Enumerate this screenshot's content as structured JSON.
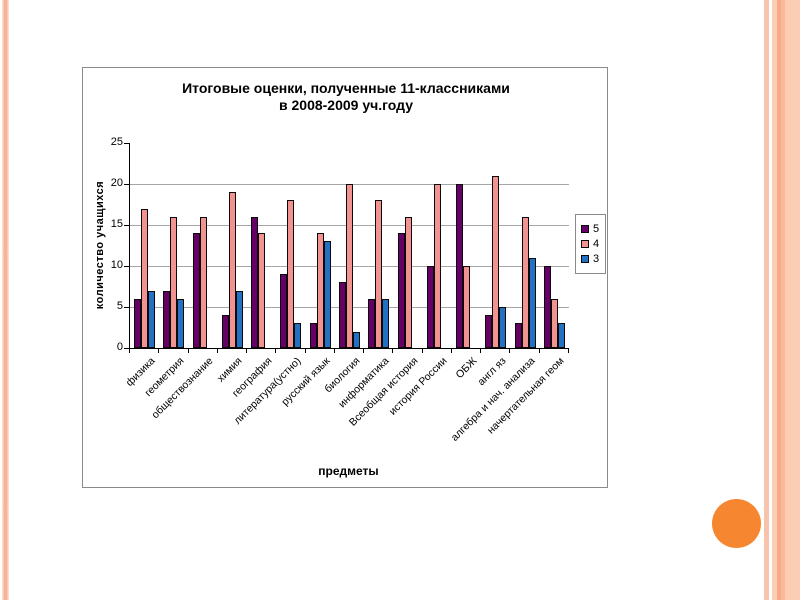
{
  "slide": {
    "decor": {
      "left_stripe_color": "#f5b196",
      "right_line_color": "#f8c3ab",
      "right_panel_color": "#fccdb5",
      "circle_color": "#f6862f"
    }
  },
  "chart_data": {
    "type": "bar",
    "title": "Итоговые оценки, полученные 11-классниками в 2008-2009 уч.году",
    "title_line1": "Итоговые оценки, полученные 11-классниками",
    "title_line2": "в 2008-2009 уч.году",
    "xlabel": "предметы",
    "ylabel": "количество учащихся",
    "ylim": [
      0,
      25
    ],
    "yticks": [
      0,
      5,
      10,
      15,
      20,
      25
    ],
    "grid": true,
    "legend_position": "right",
    "categories": [
      "физика",
      "геометрия",
      "обществознание",
      "химия",
      "география",
      "литература(устно)",
      "русский язык",
      "биология",
      "информатика",
      "Всеобщая история",
      "история России",
      "ОБЖ",
      "англ яз",
      "алгебра и нач. анализа",
      "начертательная геом"
    ],
    "series": [
      {
        "name": "5",
        "color": "#660066",
        "values": [
          6,
          7,
          14,
          4,
          16,
          9,
          3,
          8,
          6,
          14,
          10,
          20,
          4,
          3,
          10
        ]
      },
      {
        "name": "4",
        "color": "#f29291",
        "values": [
          17,
          16,
          16,
          19,
          14,
          18,
          14,
          20,
          18,
          16,
          20,
          10,
          21,
          16,
          6
        ]
      },
      {
        "name": "3",
        "color": "#2371c3",
        "values": [
          7,
          6,
          0,
          7,
          0,
          3,
          13,
          2,
          6,
          0,
          0,
          0,
          5,
          11,
          3
        ]
      }
    ]
  }
}
